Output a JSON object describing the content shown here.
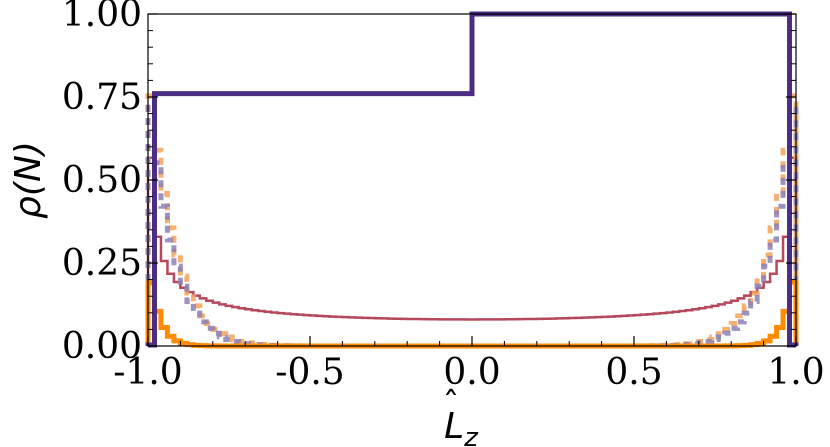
{
  "chart_data": {
    "type": "line",
    "title": "",
    "xlabel": "L̂_z",
    "xlabel_main": "L",
    "xlabel_hat": "ˆ",
    "xlabel_sub": "z",
    "ylabel": "ρ(N)",
    "xlim": [
      -1.0,
      1.0
    ],
    "ylim": [
      0.0,
      1.0
    ],
    "grid": false,
    "legend": "none",
    "x_ticks": [
      {
        "value": -1.0,
        "label": "-1.0"
      },
      {
        "value": -0.5,
        "label": "-0.5"
      },
      {
        "value": 0.0,
        "label": "0.0"
      },
      {
        "value": 0.5,
        "label": "0.5"
      },
      {
        "value": 1.0,
        "label": "1.0"
      }
    ],
    "y_ticks": [
      {
        "value": 0.0,
        "label": "0.00"
      },
      {
        "value": 0.25,
        "label": "0.25"
      },
      {
        "value": 0.5,
        "label": "0.50"
      },
      {
        "value": 0.75,
        "label": "0.75"
      },
      {
        "value": 1.0,
        "label": "1.00"
      }
    ],
    "bins": 100,
    "series": [
      {
        "style": "step-thin",
        "color": "#b5485c",
        "curve": {
          "kind": "inv_sqrt",
          "a": 0.08,
          "cap": 0.89
        }
      },
      {
        "style": "dashed-thick",
        "color": "#f4a259",
        "curve": {
          "kind": "power",
          "a": 0.85,
          "n": 12,
          "cap": 0.8
        }
      },
      {
        "style": "dashed-thick",
        "color": "#8c7fb5",
        "curve": {
          "kind": "power",
          "a": 0.82,
          "n": 13,
          "cap": 0.78
        }
      },
      {
        "style": "step-thick",
        "color": "#ff8c00",
        "curve": {
          "kind": "power",
          "a": 0.26,
          "n": 30,
          "cap": 0.27,
          "left_cap": 0.19
        }
      },
      {
        "style": "step-thick",
        "color": "#4b2e83",
        "curve": {
          "kind": "edges",
          "left": 0.76,
          "right": 1.0
        }
      }
    ]
  }
}
